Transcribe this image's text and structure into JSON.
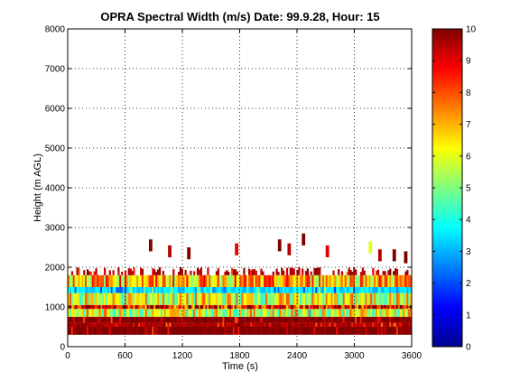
{
  "chart_data": {
    "type": "heatmap",
    "title": "OPRA Spectral Width (m/s)  Date: 99.9.28, Hour: 15",
    "xlabel": "Time (s)",
    "ylabel": "Height (m AGL)",
    "xlim": [
      0,
      3600
    ],
    "ylim": [
      0,
      8000
    ],
    "xticks": [
      "0",
      "600",
      "1200",
      "1800",
      "2400",
      "3000",
      "3600"
    ],
    "yticks": [
      "0",
      "1000",
      "2000",
      "3000",
      "4000",
      "5000",
      "6000",
      "7000",
      "8000"
    ],
    "grid": true,
    "colorbar": {
      "range": [
        0,
        10
      ],
      "ticks": [
        "0",
        "1",
        "2",
        "3",
        "4",
        "5",
        "6",
        "7",
        "8",
        "9",
        "10"
      ],
      "colormap": "jet"
    },
    "height_bands": [
      {
        "height_from": 300,
        "height_to": 500,
        "value": 10
      },
      {
        "height_from": 500,
        "height_to": 600,
        "value": 9.5
      },
      {
        "height_from": 600,
        "height_to": 750,
        "value": 10
      },
      {
        "height_from": 750,
        "height_to": 950,
        "value": 6
      },
      {
        "height_from": 950,
        "height_to": 1050,
        "value": 8.5
      },
      {
        "height_from": 1050,
        "height_to": 1350,
        "value": 6
      },
      {
        "height_from": 1350,
        "height_to": 1500,
        "value": 3.5
      },
      {
        "height_from": 1500,
        "height_to": 1800,
        "value": 7
      },
      {
        "height_from": 1800,
        "height_to": 2000,
        "value": 9.5
      }
    ],
    "sparse_echoes": [
      {
        "time": 850,
        "height": 2550,
        "value": 10
      },
      {
        "time": 1050,
        "height": 2400,
        "value": 9.5
      },
      {
        "time": 1250,
        "height": 2350,
        "value": 10
      },
      {
        "time": 1750,
        "height": 2450,
        "value": 9
      },
      {
        "time": 2200,
        "height": 2550,
        "value": 10
      },
      {
        "time": 2300,
        "height": 2450,
        "value": 9.5
      },
      {
        "time": 2450,
        "height": 2700,
        "value": 10
      },
      {
        "time": 2700,
        "height": 2400,
        "value": 9
      },
      {
        "time": 3150,
        "height": 2500,
        "value": 6
      },
      {
        "time": 3250,
        "height": 2300,
        "value": 9.5
      },
      {
        "time": 3400,
        "height": 2300,
        "value": 10
      },
      {
        "time": 3520,
        "height": 2250,
        "value": 10
      }
    ]
  }
}
